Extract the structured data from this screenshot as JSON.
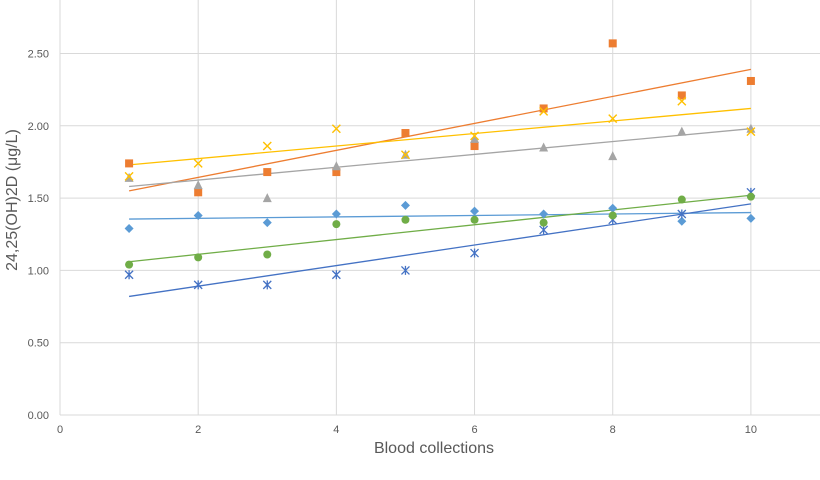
{
  "chart_data": {
    "type": "scatter",
    "title": "",
    "xlabel": "Blood collections",
    "ylabel": "24,25(OH)2D (μg/L)",
    "xlim": [
      0,
      11
    ],
    "ylim": [
      0,
      2.87
    ],
    "x_ticks": [
      "0",
      "2",
      "4",
      "6",
      "8",
      "10"
    ],
    "y_ticks": [
      "0.00",
      "0.50",
      "1.00",
      "1.50",
      "2.00",
      "2.50"
    ],
    "grid": "vertical and horizontal",
    "legend": "none",
    "series": [
      {
        "marker": "diamond",
        "color": "#5B9BD5",
        "x": [
          1,
          2,
          3,
          4,
          5,
          6,
          7,
          8,
          9,
          10
        ],
        "y": [
          1.29,
          1.38,
          1.33,
          1.39,
          1.45,
          1.41,
          1.39,
          1.43,
          1.34,
          1.36
        ],
        "trend": [
          1.355,
          1.4
        ]
      },
      {
        "marker": "square",
        "color": "#ED7D31",
        "x": [
          1,
          2,
          3,
          4,
          5,
          6,
          7,
          8,
          9,
          10
        ],
        "y": [
          1.74,
          1.54,
          1.68,
          1.68,
          1.95,
          1.86,
          2.12,
          2.57,
          2.21,
          2.31
        ],
        "trend": [
          1.55,
          2.39
        ]
      },
      {
        "marker": "triangle",
        "color": "#A5A5A5",
        "x": [
          1,
          2,
          3,
          4,
          5,
          6,
          7,
          8,
          9,
          10
        ],
        "y": [
          1.64,
          1.59,
          1.5,
          1.72,
          1.8,
          1.91,
          1.85,
          1.79,
          1.96,
          1.98
        ],
        "trend": [
          1.58,
          1.98
        ]
      },
      {
        "marker": "x",
        "color": "#FFC000",
        "x": [
          1,
          2,
          3,
          4,
          5,
          6,
          7,
          8,
          9,
          10
        ],
        "y": [
          1.65,
          1.74,
          1.86,
          1.98,
          1.8,
          1.93,
          2.1,
          2.05,
          2.17,
          1.96
        ],
        "trend": [
          1.73,
          2.12
        ]
      },
      {
        "marker": "star",
        "color": "#4472C4",
        "x": [
          1,
          2,
          3,
          4,
          5,
          6,
          7,
          8,
          9,
          10
        ],
        "y": [
          0.97,
          0.9,
          0.9,
          0.97,
          1.0,
          1.12,
          1.28,
          1.35,
          1.39,
          1.54
        ],
        "trend": [
          0.82,
          1.46
        ]
      },
      {
        "marker": "circle",
        "color": "#70AD47",
        "x": [
          1,
          2,
          3,
          4,
          5,
          6,
          7,
          8,
          9,
          10
        ],
        "y": [
          1.04,
          1.09,
          1.11,
          1.32,
          1.35,
          1.35,
          1.33,
          1.38,
          1.49,
          1.51
        ],
        "trend": [
          1.06,
          1.52
        ]
      }
    ]
  }
}
